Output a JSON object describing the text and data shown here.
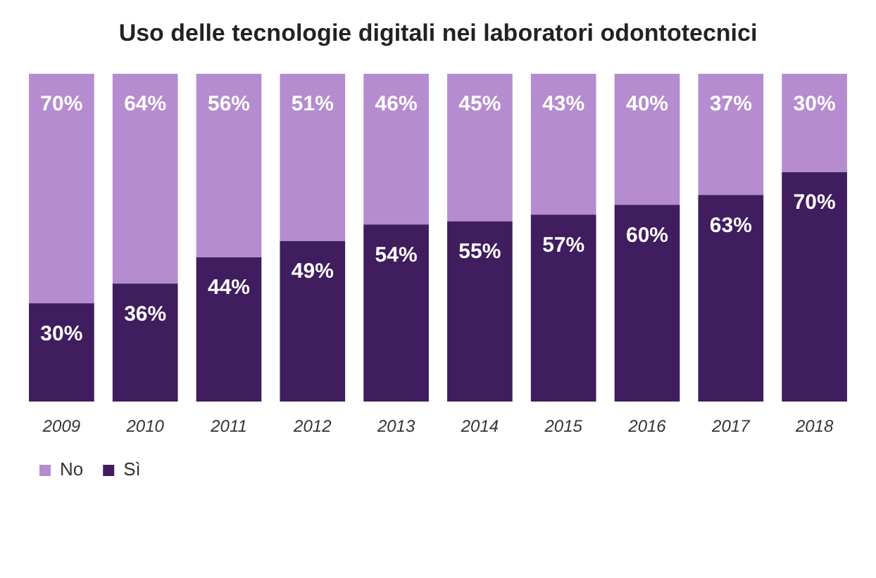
{
  "chart_data": {
    "type": "bar",
    "title": "Uso delle tecnologie digitali nei laboratori odontotecnici",
    "categories": [
      "2009",
      "2010",
      "2011",
      "2012",
      "2013",
      "2014",
      "2015",
      "2016",
      "2017",
      "2018"
    ],
    "stacked": true,
    "ylim": [
      0,
      100
    ],
    "tick_labels": "x",
    "grid": false,
    "legend": "bottom left",
    "series": [
      {
        "name": "Sì",
        "color": "#3f1d5e",
        "values": [
          30,
          36,
          44,
          49,
          54,
          55,
          57,
          60,
          63,
          70
        ],
        "value_labels": [
          "30%",
          "36%",
          "44%",
          "49%",
          "54%",
          "55%",
          "57%",
          "60%",
          "63%",
          "70%"
        ]
      },
      {
        "name": "No",
        "color": "#b48ccf",
        "values": [
          70,
          64,
          56,
          51,
          46,
          45,
          43,
          40,
          37,
          30
        ],
        "value_labels": [
          "70%",
          "64%",
          "56%",
          "51%",
          "46%",
          "45%",
          "43%",
          "40%",
          "37%",
          "30%"
        ]
      }
    ]
  }
}
